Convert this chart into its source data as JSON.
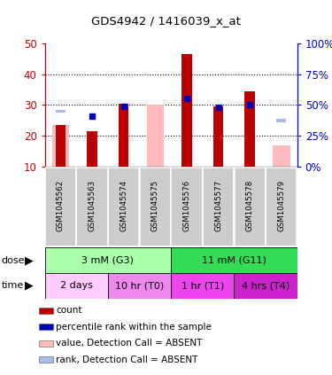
{
  "title": "GDS4942 / 1416039_x_at",
  "samples": [
    "GSM1045562",
    "GSM1045563",
    "GSM1045574",
    "GSM1045575",
    "GSM1045576",
    "GSM1045577",
    "GSM1045578",
    "GSM1045579"
  ],
  "count_values": [
    23.5,
    21.5,
    30.5,
    null,
    46.5,
    29.5,
    34.5,
    null
  ],
  "rank_values": [
    null,
    26.5,
    29.5,
    null,
    32.0,
    29.2,
    30.0,
    null
  ],
  "absent_value": [
    23.5,
    null,
    null,
    30.0,
    null,
    null,
    null,
    17.0
  ],
  "absent_rank": [
    28.0,
    null,
    null,
    null,
    null,
    null,
    null,
    25.0
  ],
  "ylim": [
    10,
    50
  ],
  "y2lim": [
    0,
    100
  ],
  "yticks": [
    10,
    20,
    30,
    40,
    50
  ],
  "y2ticks": [
    0,
    25,
    50,
    75,
    100
  ],
  "dose_groups": [
    {
      "label": "3 mM (G3)",
      "start": 0,
      "end": 4,
      "color": "#aaffaa"
    },
    {
      "label": "11 mM (G11)",
      "start": 4,
      "end": 8,
      "color": "#33dd55"
    }
  ],
  "time_groups": [
    {
      "label": "2 days",
      "start": 0,
      "end": 2,
      "color": "#ffccff"
    },
    {
      "label": "10 hr (T0)",
      "start": 2,
      "end": 4,
      "color": "#ee88ee"
    },
    {
      "label": "1 hr (T1)",
      "start": 4,
      "end": 6,
      "color": "#ee44ee"
    },
    {
      "label": "4 hrs (T4)",
      "start": 6,
      "end": 8,
      "color": "#cc22cc"
    }
  ],
  "bar_color": "#bb0000",
  "rank_color": "#0000bb",
  "absent_bar_color": "#ffbbbb",
  "absent_rank_color": "#aabbee",
  "left_axis_color": "#cc0000",
  "right_axis_color": "#0000cc",
  "legend_items": [
    {
      "color": "#bb0000",
      "label": "count"
    },
    {
      "color": "#0000bb",
      "label": "percentile rank within the sample"
    },
    {
      "color": "#ffbbbb",
      "label": "value, Detection Call = ABSENT"
    },
    {
      "color": "#aabbee",
      "label": "rank, Detection Call = ABSENT"
    }
  ]
}
